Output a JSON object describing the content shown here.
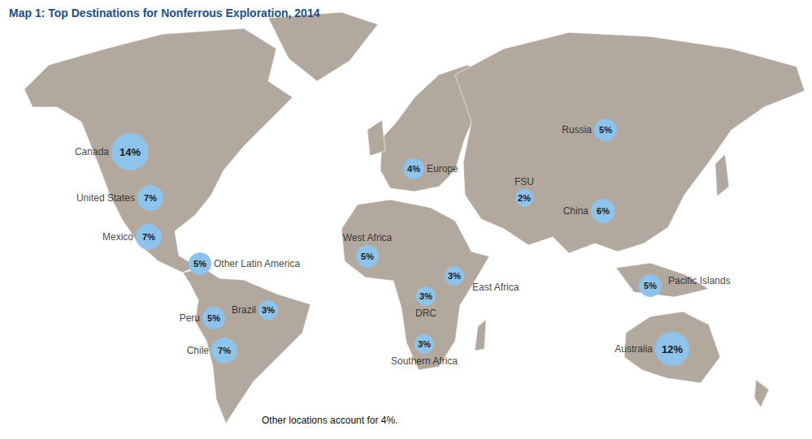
{
  "chart_data": {
    "type": "bubble_map",
    "title": "Map 1: Top Destinations for Nonferrous Exploration, 2014",
    "categories": [
      "Canada",
      "United States",
      "Mexico",
      "Other Latin America",
      "Peru",
      "Brazil",
      "Chile",
      "West Africa",
      "Europe",
      "East Africa",
      "DRC",
      "Southern Africa",
      "FSU",
      "Russia",
      "China",
      "Pacific Islands",
      "Australia"
    ],
    "values": [
      14,
      7,
      7,
      5,
      5,
      3,
      7,
      5,
      4,
      3,
      3,
      3,
      2,
      5,
      6,
      5,
      12
    ],
    "value_labels": [
      "14%",
      "7%",
      "7%",
      "5%",
      "5%",
      "3%",
      "7%",
      "5%",
      "4%",
      "3%",
      "3%",
      "3%",
      "2%",
      "5%",
      "6%",
      "5%",
      "12%"
    ],
    "data_labels": true,
    "color": "#8ec3ec",
    "annotation": "Other locations account for 4%."
  }
}
